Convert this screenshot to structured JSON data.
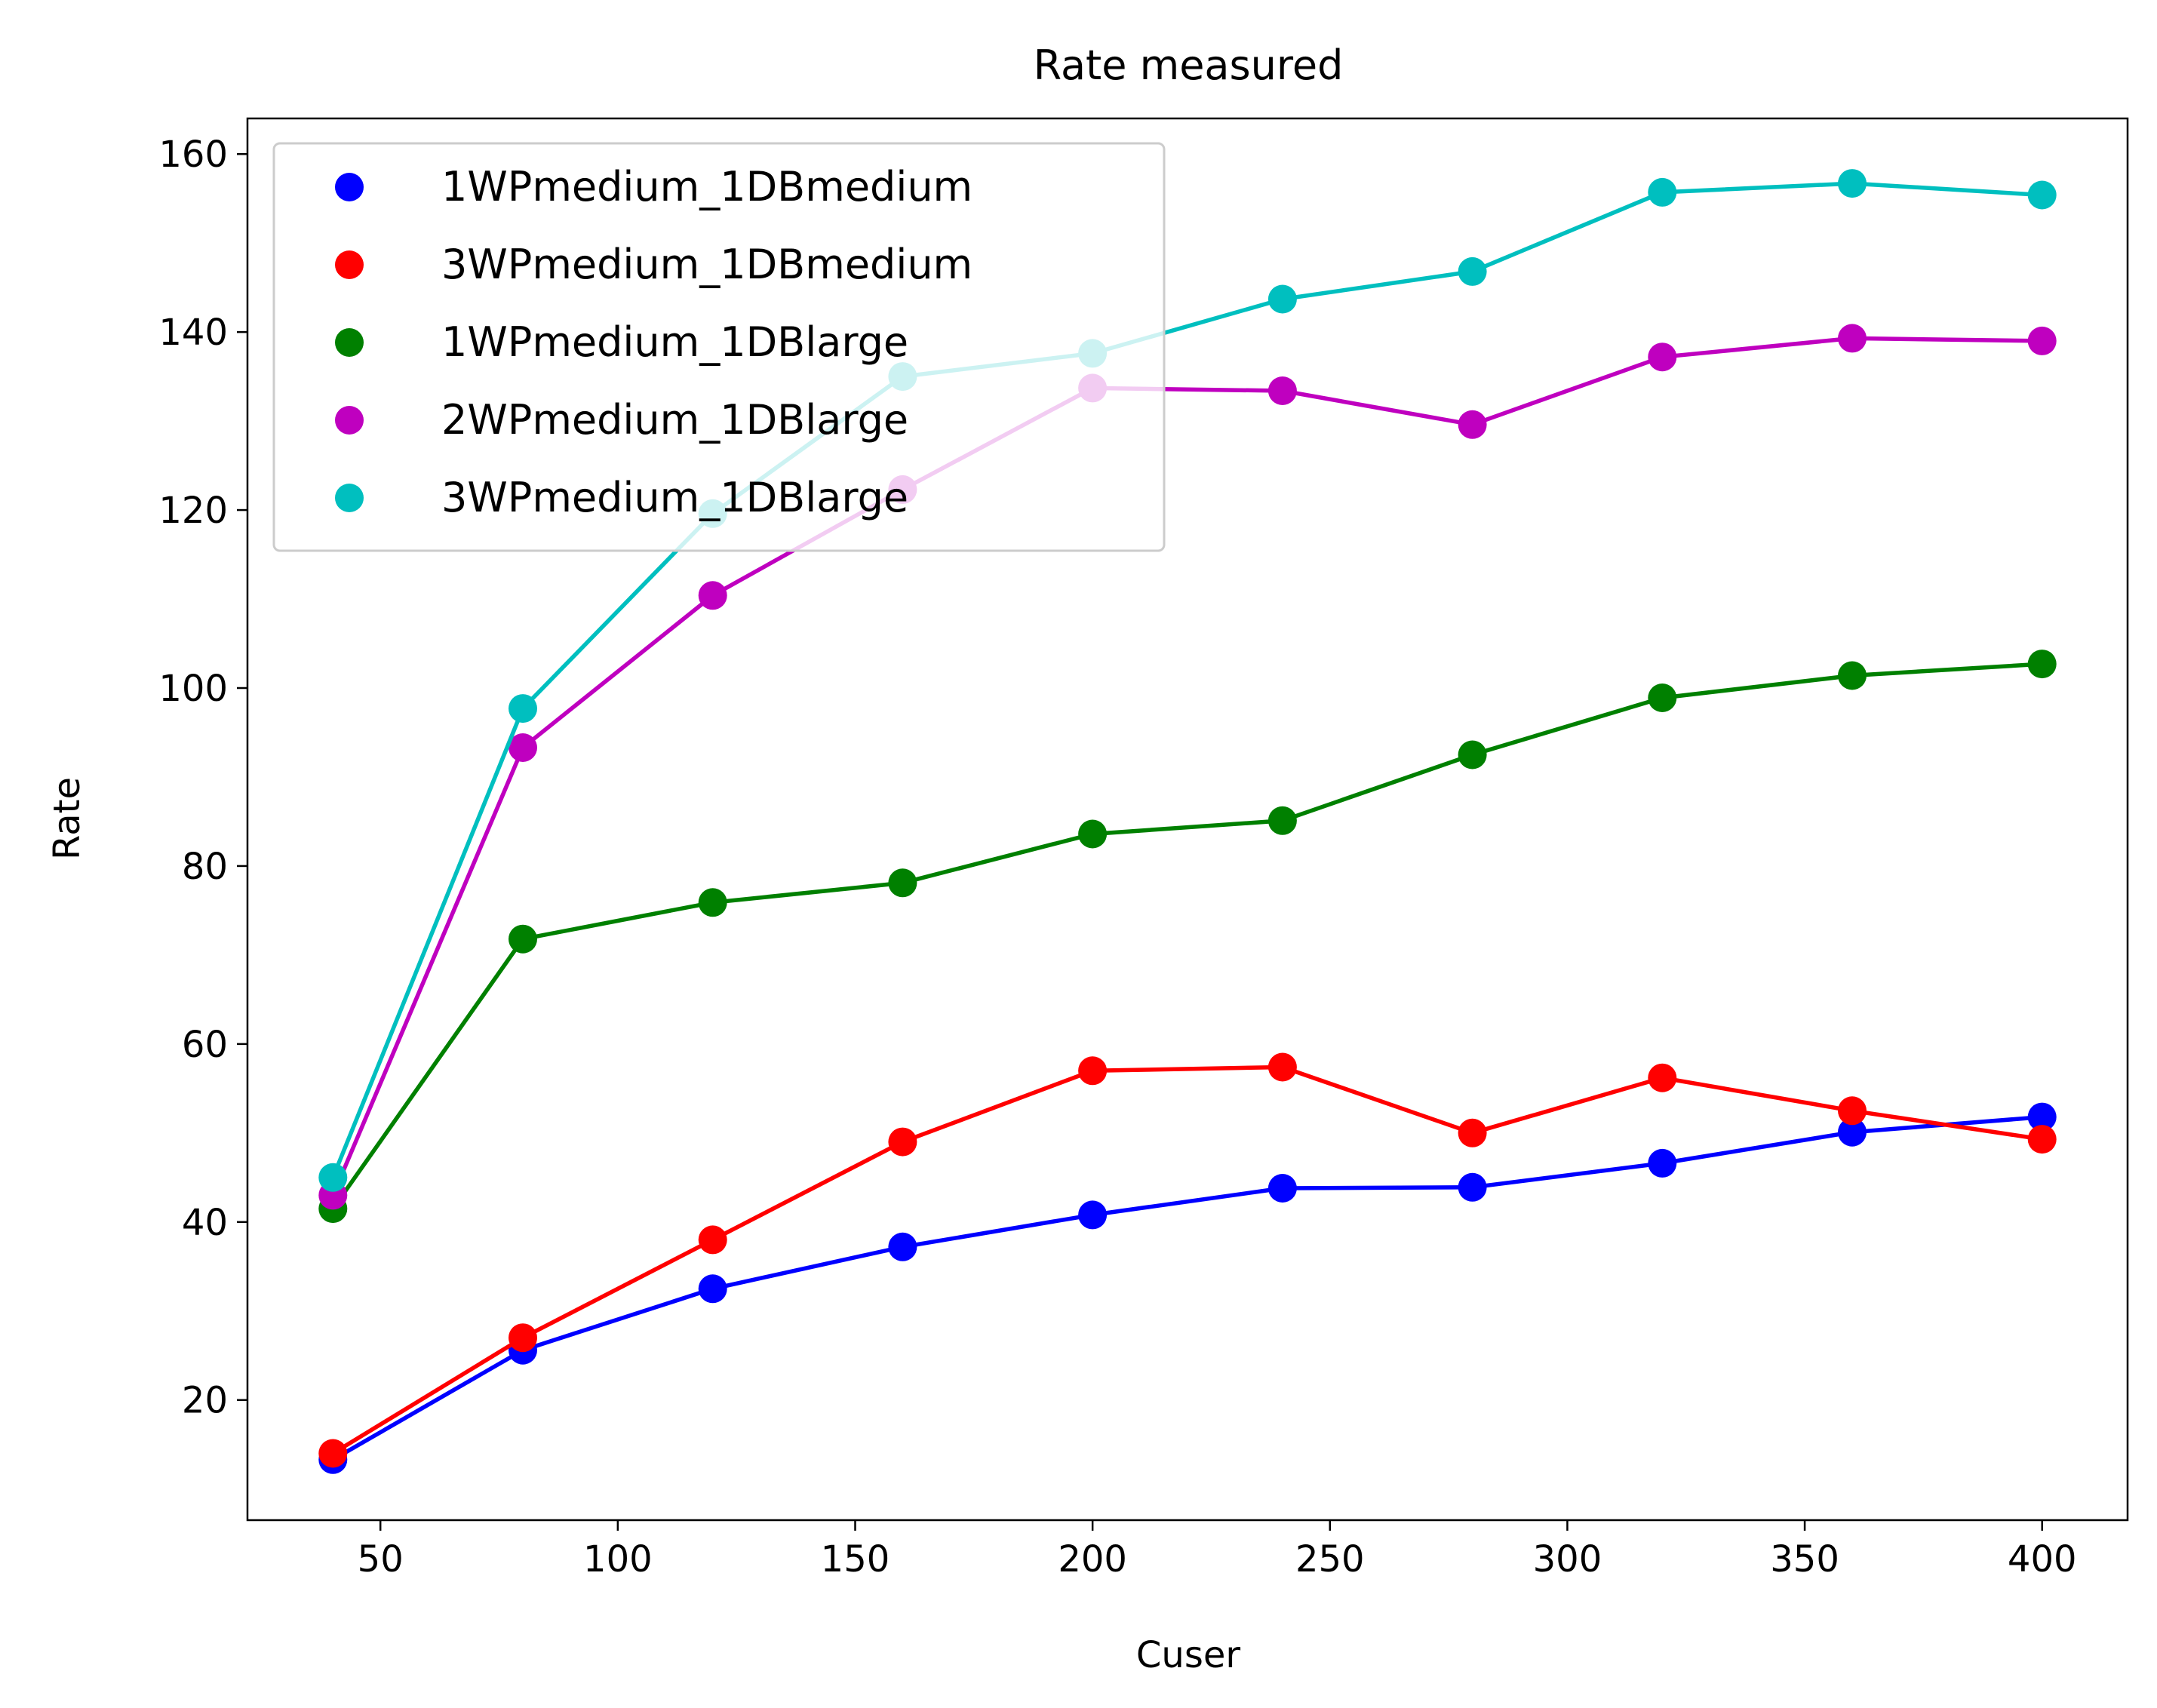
{
  "chart_data": {
    "type": "line",
    "title": "Rate measured",
    "xlabel": "Cuser",
    "ylabel": "Rate",
    "xlim": [
      22,
      418
    ],
    "ylim": [
      6.5,
      164
    ],
    "xticks": [
      50,
      100,
      150,
      200,
      250,
      300,
      350,
      400
    ],
    "yticks": [
      20,
      40,
      60,
      80,
      100,
      120,
      140,
      160
    ],
    "x": [
      40,
      80,
      120,
      160,
      200,
      240,
      280,
      320,
      360,
      400
    ],
    "legend_position": "upper left",
    "grid": false,
    "series": [
      {
        "name": "1WPmedium_1DBmedium",
        "color": "#0000ff",
        "values": [
          13.3,
          25.6,
          32.5,
          37.2,
          40.8,
          43.8,
          43.9,
          46.6,
          50.1,
          51.8
        ]
      },
      {
        "name": "3WPmedium_1DBmedium",
        "color": "#ff0000",
        "values": [
          14.0,
          27.0,
          38.0,
          49.0,
          57.0,
          57.4,
          50.0,
          56.2,
          52.5,
          49.3
        ]
      },
      {
        "name": "1WPmedium_1DBlarge",
        "color": "#008000",
        "values": [
          41.5,
          71.8,
          75.9,
          78.1,
          83.6,
          85.1,
          92.5,
          98.9,
          101.4,
          102.7
        ]
      },
      {
        "name": "2WPmedium_1DBlarge",
        "color": "#bf00bf",
        "values": [
          43.0,
          93.3,
          110.4,
          122.3,
          133.7,
          133.4,
          129.6,
          137.2,
          139.3,
          139.0
        ]
      },
      {
        "name": "3WPmedium_1DBlarge",
        "color": "#00bfbf",
        "values": [
          45.0,
          97.7,
          119.6,
          135.0,
          137.6,
          143.7,
          146.8,
          155.7,
          156.7,
          155.4
        ]
      }
    ]
  }
}
